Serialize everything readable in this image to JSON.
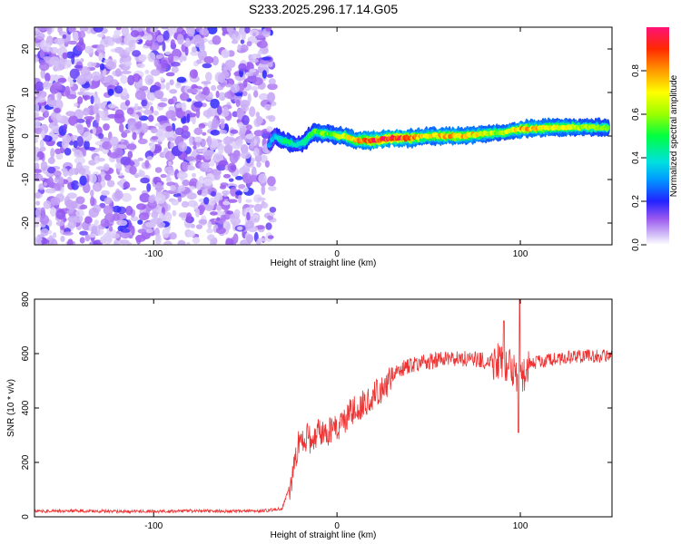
{
  "figure": {
    "title": "S233.2025.296.17.14.G05"
  },
  "colors": {
    "snr_line": "#ee3333",
    "axis": "#000000",
    "noise": "#8a2be2",
    "background": "#ffffff"
  },
  "chart_data": [
    {
      "type": "heatmap",
      "name": "spectrogram",
      "title": "S233.2025.296.17.14.G05",
      "xlabel": "Height of straight line (km)",
      "ylabel": "Frequency (Hz)",
      "xlim": [
        -165,
        150
      ],
      "ylim": [
        -25,
        25
      ],
      "xticks": [
        {
          "value": -100,
          "label": "-100"
        },
        {
          "value": 0,
          "label": "0"
        },
        {
          "value": 100,
          "label": "100"
        }
      ],
      "yticks": [
        {
          "value": -20,
          "label": "-20"
        },
        {
          "value": -10,
          "label": "-10"
        },
        {
          "value": 0,
          "label": "0"
        },
        {
          "value": 10,
          "label": "10"
        },
        {
          "value": 20,
          "label": "20"
        }
      ],
      "noise_region_x": [
        -165,
        -37
      ],
      "signal_ridge": {
        "x": [
          -37,
          -34,
          -30,
          -26,
          -22,
          -18,
          -15,
          -12,
          -8,
          -4,
          0,
          4,
          10,
          20,
          30,
          40,
          50,
          60,
          70,
          80,
          90,
          100,
          110,
          120,
          130,
          140,
          148
        ],
        "y": [
          -2,
          0,
          -1,
          -1.5,
          -2,
          -1.5,
          0,
          1,
          0.5,
          0.5,
          0,
          0,
          -1,
          -1,
          -0.5,
          -0.5,
          0,
          0,
          0,
          0.5,
          0.8,
          1.5,
          1.8,
          2,
          2,
          2,
          1.8
        ],
        "amplitude": [
          0.3,
          0.35,
          0.45,
          0.5,
          0.4,
          0.45,
          0.5,
          0.55,
          0.6,
          0.55,
          0.6,
          0.65,
          0.75,
          0.9,
          0.95,
          0.85,
          0.7,
          0.8,
          0.75,
          0.7,
          0.6,
          0.8,
          0.75,
          0.7,
          0.65,
          0.6,
          0.55
        ]
      },
      "colorbar": {
        "label": "Normalized spectral amplitude",
        "range": [
          0,
          1
        ],
        "ticks": [
          {
            "value": 0.0,
            "label": "0.0"
          },
          {
            "value": 0.2,
            "label": "0.2"
          },
          {
            "value": 0.4,
            "label": "0.4"
          },
          {
            "value": 0.6,
            "label": "0.6"
          },
          {
            "value": 0.8,
            "label": "0.8"
          }
        ]
      }
    },
    {
      "type": "line",
      "name": "snr",
      "xlabel": "Height of straight line (km)",
      "ylabel": "SNR (10 * v/v)",
      "xlim": [
        -165,
        150
      ],
      "ylim": [
        0,
        800
      ],
      "xticks": [
        {
          "value": -100,
          "label": "-100"
        },
        {
          "value": 0,
          "label": "0"
        },
        {
          "value": 100,
          "label": "100"
        }
      ],
      "yticks": [
        {
          "value": 0,
          "label": "0"
        },
        {
          "value": 200,
          "label": "200"
        },
        {
          "value": 400,
          "label": "400"
        },
        {
          "value": 600,
          "label": "600"
        },
        {
          "value": 800,
          "label": "800"
        }
      ],
      "series": [
        {
          "name": "SNR",
          "x": [
            -165,
            -140,
            -120,
            -100,
            -80,
            -60,
            -40,
            -30,
            -25,
            -22,
            -18,
            -14,
            -10,
            -6,
            -2,
            0,
            5,
            10,
            15,
            20,
            25,
            30,
            40,
            50,
            60,
            70,
            80,
            90,
            95,
            100,
            105,
            110,
            120,
            130,
            140,
            150
          ],
          "y": [
            20,
            22,
            20,
            20,
            22,
            20,
            22,
            30,
            130,
            250,
            300,
            280,
            320,
            300,
            340,
            300,
            370,
            400,
            420,
            450,
            470,
            520,
            560,
            570,
            580,
            580,
            575,
            570,
            560,
            500,
            560,
            570,
            580,
            590,
            590,
            590
          ]
        }
      ]
    }
  ]
}
